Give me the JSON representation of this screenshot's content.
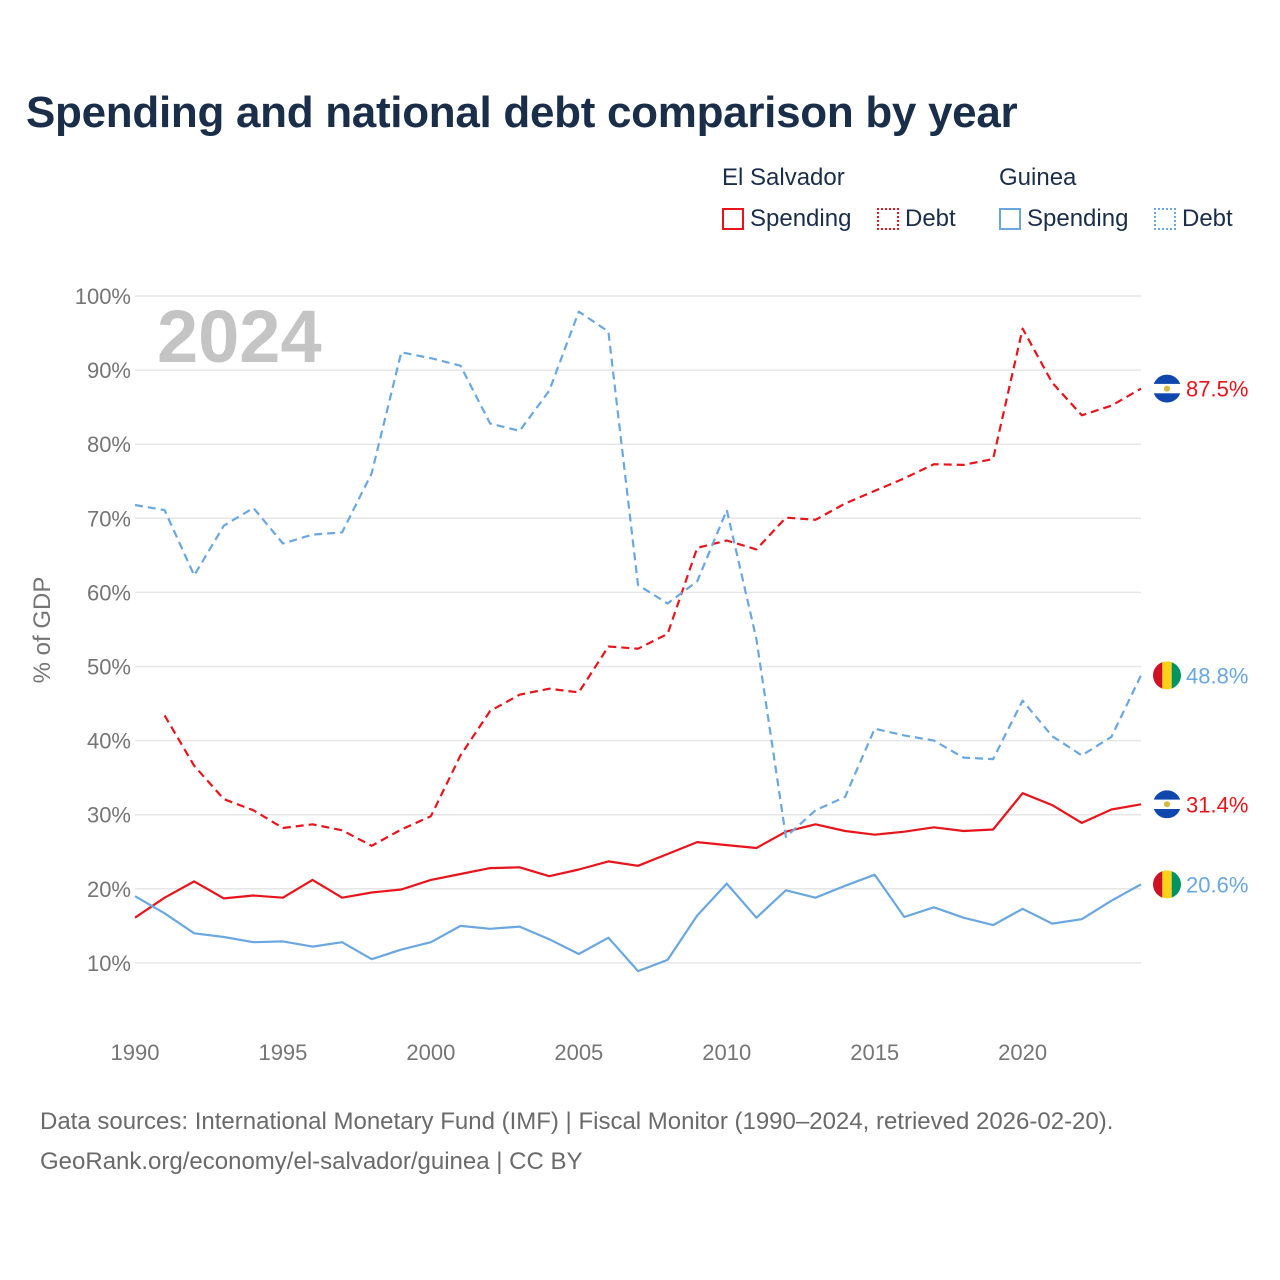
{
  "title": "Spending and national debt comparison by year",
  "legend": {
    "groups": [
      {
        "country": "El Salvador",
        "items": [
          "Spending",
          "Debt"
        ],
        "color": "#e8141b"
      },
      {
        "country": "Guinea",
        "items": [
          "Spending",
          "Debt"
        ],
        "color": "#6aa7e0"
      }
    ]
  },
  "footer": {
    "line1": "Data sources: International Monetary Fund (IMF) | Fiscal Monitor (1990–2024, retrieved 2026-02-20).",
    "line2": "GeoRank.org/economy/el-salvador/guinea | CC BY"
  },
  "chart_data": {
    "type": "line",
    "title": "Spending and national debt comparison by year",
    "ylabel": "% of GDP",
    "xlabel": "",
    "year_watermark": "2024",
    "xlim": [
      1990,
      2024
    ],
    "ylim": [
      0,
      100
    ],
    "x_ticks": [
      "1990",
      "1995",
      "2000",
      "2005",
      "2010",
      "2015",
      "2020"
    ],
    "y_ticks": [
      "10%",
      "20%",
      "30%",
      "40%",
      "50%",
      "60%",
      "70%",
      "80%",
      "90%",
      "100%"
    ],
    "series": [
      {
        "name": "El Salvador Spending",
        "color": "#e8141b",
        "style": "solid",
        "end_label": "31.4%",
        "points": [
          [
            1990,
            16.1
          ],
          [
            1991,
            18.8
          ],
          [
            1992,
            21.0
          ],
          [
            1993,
            18.7
          ],
          [
            1994,
            19.1
          ],
          [
            1995,
            18.8
          ],
          [
            1996,
            21.2
          ],
          [
            1997,
            18.8
          ],
          [
            1998,
            19.5
          ],
          [
            1999,
            19.9
          ],
          [
            2000,
            21.2
          ],
          [
            2001,
            22.0
          ],
          [
            2002,
            22.8
          ],
          [
            2003,
            22.9
          ],
          [
            2004,
            21.7
          ],
          [
            2005,
            22.6
          ],
          [
            2006,
            23.7
          ],
          [
            2007,
            23.1
          ],
          [
            2008,
            24.7
          ],
          [
            2009,
            26.3
          ],
          [
            2010,
            25.9
          ],
          [
            2011,
            25.5
          ],
          [
            2012,
            27.7
          ],
          [
            2013,
            28.7
          ],
          [
            2014,
            27.8
          ],
          [
            2015,
            27.3
          ],
          [
            2016,
            27.7
          ],
          [
            2017,
            28.3
          ],
          [
            2018,
            27.8
          ],
          [
            2019,
            28.0
          ],
          [
            2020,
            32.9
          ],
          [
            2021,
            31.3
          ],
          [
            2022,
            28.9
          ],
          [
            2023,
            30.7
          ],
          [
            2024,
            31.4
          ]
        ]
      },
      {
        "name": "El Salvador Debt",
        "color": "#e8141b",
        "style": "dashed",
        "end_label": "87.5%",
        "points": [
          [
            1991,
            43.4
          ],
          [
            1992,
            36.6
          ],
          [
            1993,
            32.1
          ],
          [
            1994,
            30.6
          ],
          [
            1995,
            28.2
          ],
          [
            1996,
            28.7
          ],
          [
            1997,
            27.9
          ],
          [
            1998,
            25.8
          ],
          [
            1999,
            28.0
          ],
          [
            2000,
            29.8
          ],
          [
            2001,
            38.0
          ],
          [
            2002,
            44.0
          ],
          [
            2003,
            46.2
          ],
          [
            2004,
            47.0
          ],
          [
            2005,
            46.5
          ],
          [
            2006,
            52.7
          ],
          [
            2007,
            52.4
          ],
          [
            2008,
            54.4
          ],
          [
            2009,
            66.0
          ],
          [
            2010,
            67.0
          ],
          [
            2011,
            65.8
          ],
          [
            2012,
            70.1
          ],
          [
            2013,
            69.8
          ],
          [
            2014,
            72.0
          ],
          [
            2015,
            73.7
          ],
          [
            2016,
            75.4
          ],
          [
            2017,
            77.3
          ],
          [
            2018,
            77.2
          ],
          [
            2019,
            78.0
          ],
          [
            2020,
            95.6
          ],
          [
            2021,
            88.3
          ],
          [
            2022,
            83.9
          ],
          [
            2023,
            85.2
          ],
          [
            2024,
            87.5
          ]
        ]
      },
      {
        "name": "Guinea Spending",
        "color": "#6aa7e0",
        "style": "solid",
        "end_label": "20.6%",
        "points": [
          [
            1990,
            19.0
          ],
          [
            1991,
            16.7
          ],
          [
            1992,
            14.0
          ],
          [
            1993,
            13.5
          ],
          [
            1994,
            12.8
          ],
          [
            1995,
            12.9
          ],
          [
            1996,
            12.2
          ],
          [
            1997,
            12.8
          ],
          [
            1998,
            10.5
          ],
          [
            1999,
            11.8
          ],
          [
            2000,
            12.8
          ],
          [
            2001,
            15.0
          ],
          [
            2002,
            14.6
          ],
          [
            2003,
            14.9
          ],
          [
            2004,
            13.2
          ],
          [
            2005,
            11.2
          ],
          [
            2006,
            13.4
          ],
          [
            2007,
            8.9
          ],
          [
            2008,
            10.4
          ],
          [
            2009,
            16.4
          ],
          [
            2010,
            20.7
          ],
          [
            2011,
            16.1
          ],
          [
            2012,
            19.8
          ],
          [
            2013,
            18.8
          ],
          [
            2014,
            20.4
          ],
          [
            2015,
            21.9
          ],
          [
            2016,
            16.2
          ],
          [
            2017,
            17.5
          ],
          [
            2018,
            16.1
          ],
          [
            2019,
            15.1
          ],
          [
            2020,
            17.3
          ],
          [
            2021,
            15.3
          ],
          [
            2022,
            15.9
          ],
          [
            2023,
            18.4
          ],
          [
            2024,
            20.6
          ]
        ]
      },
      {
        "name": "Guinea Debt",
        "color": "#6aa7e0",
        "style": "dashed",
        "end_label": "48.8%",
        "points": [
          [
            1990,
            71.8
          ],
          [
            1991,
            71.1
          ],
          [
            1992,
            62.3
          ],
          [
            1993,
            69.0
          ],
          [
            1994,
            71.4
          ],
          [
            1995,
            66.6
          ],
          [
            1996,
            67.8
          ],
          [
            1997,
            68.1
          ],
          [
            1998,
            76.1
          ],
          [
            1999,
            92.4
          ],
          [
            2000,
            91.6
          ],
          [
            2001,
            90.6
          ],
          [
            2002,
            82.8
          ],
          [
            2003,
            81.8
          ],
          [
            2004,
            87.2
          ],
          [
            2005,
            97.9
          ],
          [
            2006,
            95.2
          ],
          [
            2007,
            61.0
          ],
          [
            2008,
            58.5
          ],
          [
            2009,
            61.5
          ],
          [
            2010,
            71.1
          ],
          [
            2011,
            53.7
          ],
          [
            2012,
            27.0
          ],
          [
            2013,
            30.6
          ],
          [
            2014,
            32.4
          ],
          [
            2015,
            41.6
          ],
          [
            2016,
            40.7
          ],
          [
            2017,
            40.0
          ],
          [
            2018,
            37.7
          ],
          [
            2019,
            37.5
          ],
          [
            2020,
            45.4
          ],
          [
            2021,
            40.6
          ],
          [
            2022,
            38.0
          ],
          [
            2023,
            40.5
          ],
          [
            2024,
            48.8
          ]
        ]
      }
    ]
  },
  "flags": [
    {
      "series": "El Salvador Debt",
      "icon": "el-salvador-flag-icon"
    },
    {
      "series": "Guinea Debt",
      "icon": "guinea-flag-icon"
    },
    {
      "series": "El Salvador Spending",
      "icon": "el-salvador-flag-icon"
    },
    {
      "series": "Guinea Spending",
      "icon": "guinea-flag-icon"
    }
  ]
}
